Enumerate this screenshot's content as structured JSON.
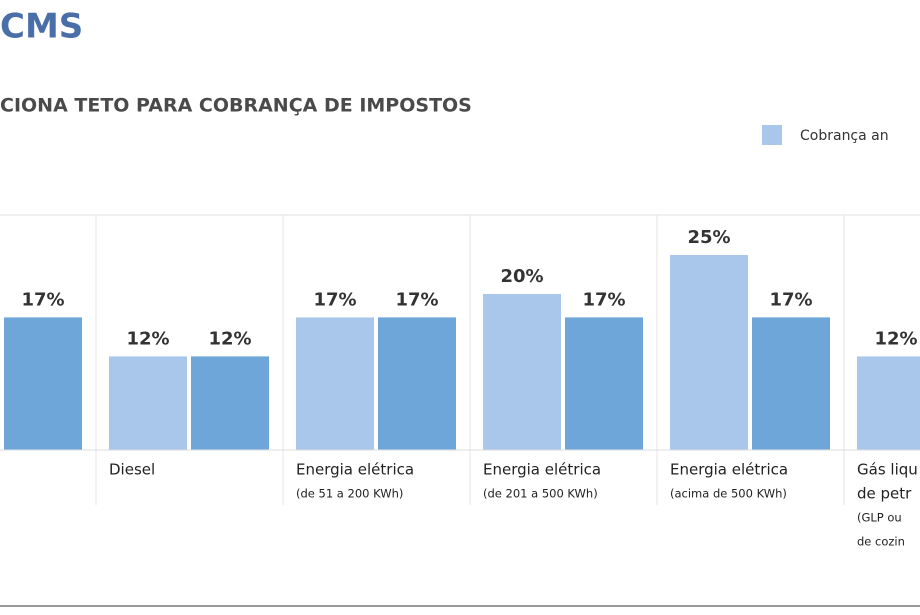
{
  "chart_data": {
    "type": "bar",
    "title": "CMS",
    "subtitle": "CIONA TETO PARA COBRANÇA DE IMPOSTOS",
    "categories": [
      null,
      [
        "Diesel"
      ],
      [
        "Energia elétrica",
        "(de 51 a 200 KWh)"
      ],
      [
        "Energia elétrica",
        "(de 201 a 500 KWh)"
      ],
      [
        "Energia elétrica",
        "(acima de 500 KWh)"
      ],
      [
        "Gás liqu",
        "de petr",
        "(GLP ou",
        "de cozin"
      ]
    ],
    "series": [
      {
        "name": "Cobrança an",
        "color": "#a8c7ea",
        "values": [
          null,
          12,
          17,
          20,
          25,
          12
        ],
        "value_labels": [
          null,
          "12%",
          "17%",
          "20%",
          "25%",
          "12%"
        ]
      },
      {
        "color": "#6fa6da",
        "values": [
          17,
          12,
          17,
          17,
          17,
          null
        ],
        "value_labels": [
          "17%",
          "12%",
          "17%",
          "17%",
          "17%",
          null
        ]
      }
    ]
  }
}
